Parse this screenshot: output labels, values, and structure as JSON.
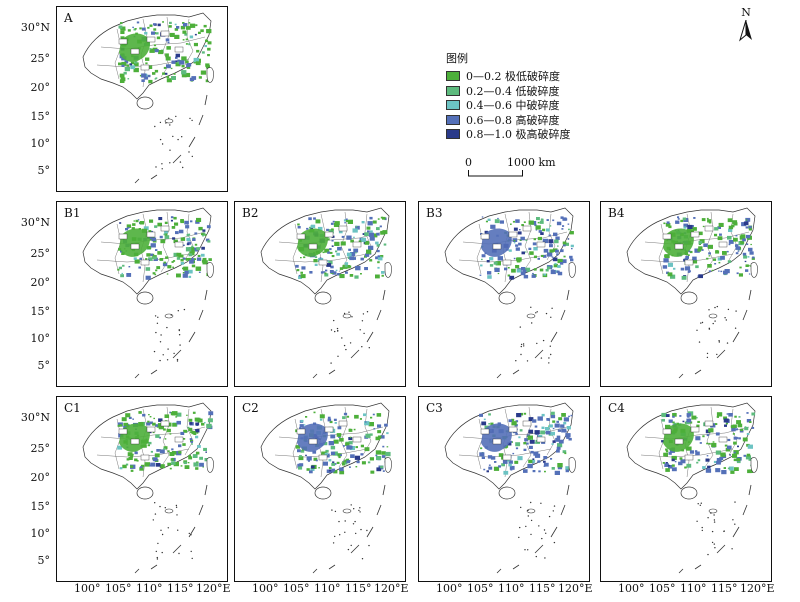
{
  "panels": [
    {
      "id": "A",
      "label": "A"
    },
    {
      "id": "B1",
      "label": "B1"
    },
    {
      "id": "B2",
      "label": "B2"
    },
    {
      "id": "B3",
      "label": "B3"
    },
    {
      "id": "B4",
      "label": "B4"
    },
    {
      "id": "C1",
      "label": "C1"
    },
    {
      "id": "C2",
      "label": "C2"
    },
    {
      "id": "C3",
      "label": "C3"
    },
    {
      "id": "C4",
      "label": "C4"
    }
  ],
  "y_axis": {
    "labels": [
      "30°N",
      "25°",
      "20°",
      "15°",
      "10°",
      "5°"
    ]
  },
  "x_axis": {
    "labels": [
      "100°",
      "105°",
      "110°",
      "115°",
      "120°E"
    ]
  },
  "legend": {
    "title": "图例",
    "items": [
      {
        "label": "0—0.2 极低破碎度",
        "color": "#4daf3a"
      },
      {
        "label": "0.2—0.4 低破碎度",
        "color": "#5dbb7e"
      },
      {
        "label": "0.4—0.6 中破碎度",
        "color": "#6cc3c3"
      },
      {
        "label": "0.6—0.8 高破碎度",
        "color": "#5470b8"
      },
      {
        "label": "0.8—1.0 极高破碎度",
        "color": "#2a3a8a"
      }
    ]
  },
  "scale": {
    "zero": "0",
    "distance": "1000 km"
  },
  "north_arrow": {
    "label": "N"
  }
}
